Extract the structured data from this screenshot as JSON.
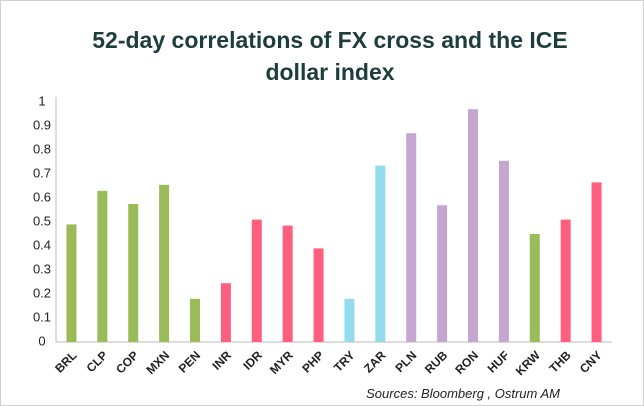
{
  "chart_data": {
    "type": "bar",
    "title": [
      "52-day correlations of FX cross and the ICE",
      "dollar index"
    ],
    "categories": [
      "BRL",
      "CLP",
      "COP",
      "MXN",
      "PEN",
      "INR",
      "IDR",
      "MYR",
      "PHP",
      "TRY",
      "ZAR",
      "PLN",
      "RUB",
      "RON",
      "HUF",
      "KRW",
      "THB",
      "CNY"
    ],
    "values": [
      0.49,
      0.63,
      0.575,
      0.655,
      0.18,
      0.245,
      0.51,
      0.485,
      0.39,
      0.18,
      0.735,
      0.87,
      0.57,
      0.97,
      0.755,
      0.45,
      0.51,
      0.665
    ],
    "colors": [
      "#9bbb59",
      "#9bbb59",
      "#9bbb59",
      "#9bbb59",
      "#9bbb59",
      "#ff5f7e",
      "#ff5f7e",
      "#ff5f7e",
      "#ff5f7e",
      "#93dcee",
      "#93dcee",
      "#c4a6d0",
      "#c4a6d0",
      "#c4a6d0",
      "#c4a6d0",
      "#9bbb59",
      "#ff5f7e",
      "#ff5f7e"
    ],
    "ylim": [
      0,
      1
    ],
    "yticks": [
      0,
      0.1,
      0.2,
      0.3,
      0.4,
      0.5,
      0.6,
      0.7,
      0.8,
      0.9,
      1
    ],
    "grid": false,
    "source": "Sources: Bloomberg , Ostrum AM"
  }
}
